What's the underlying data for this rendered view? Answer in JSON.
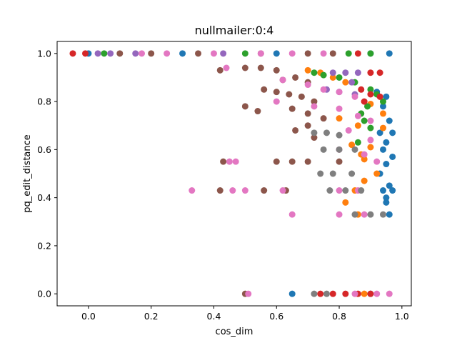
{
  "chart_data": {
    "type": "scatter",
    "title": "nullmailer:0:4",
    "xlabel": "cos_dim",
    "ylabel": "pq_edit_distance",
    "xlim": [
      -0.1,
      1.03
    ],
    "ylim": [
      -0.05,
      1.05
    ],
    "xticks": [
      0.0,
      0.2,
      0.4,
      0.6,
      0.8,
      1.0
    ],
    "xtick_labels": [
      "0.0",
      "0.2",
      "0.4",
      "0.6",
      "0.8",
      "1.0"
    ],
    "yticks": [
      0.0,
      0.2,
      0.4,
      0.6,
      0.8,
      1.0
    ],
    "ytick_labels": [
      "0.0",
      "0.2",
      "0.4",
      "0.6",
      "0.8",
      "1.0"
    ],
    "grid": false,
    "legend": "none",
    "series": [
      {
        "color": "#1f77b4",
        "points": [
          [
            0.0,
            1.0
          ],
          [
            0.3,
            1.0
          ],
          [
            0.6,
            1.0
          ],
          [
            0.9,
            1.0
          ],
          [
            0.96,
            1.0
          ],
          [
            0.92,
            0.84
          ],
          [
            0.95,
            0.82
          ],
          [
            0.94,
            0.78
          ],
          [
            0.96,
            0.72
          ],
          [
            0.93,
            0.67
          ],
          [
            0.97,
            0.67
          ],
          [
            0.95,
            0.63
          ],
          [
            0.94,
            0.6
          ],
          [
            0.97,
            0.57
          ],
          [
            0.95,
            0.54
          ],
          [
            0.93,
            0.5
          ],
          [
            0.96,
            0.45
          ],
          [
            0.94,
            0.43
          ],
          [
            0.97,
            0.43
          ],
          [
            0.95,
            0.4
          ],
          [
            0.95,
            0.38
          ],
          [
            0.96,
            0.33
          ],
          [
            0.65,
            0.0
          ],
          [
            0.9,
            0.0
          ]
        ]
      },
      {
        "color": "#ff7f0e",
        "points": [
          [
            0.7,
            0.93
          ],
          [
            0.74,
            0.92
          ],
          [
            0.78,
            0.9
          ],
          [
            0.82,
            0.88
          ],
          [
            0.9,
            0.79
          ],
          [
            0.94,
            0.75
          ],
          [
            0.8,
            0.73
          ],
          [
            0.86,
            0.7
          ],
          [
            0.94,
            0.69
          ],
          [
            0.84,
            0.62
          ],
          [
            0.9,
            0.61
          ],
          [
            0.87,
            0.58
          ],
          [
            0.88,
            0.56
          ],
          [
            0.92,
            0.5
          ],
          [
            0.88,
            0.47
          ],
          [
            0.85,
            0.43
          ],
          [
            0.82,
            0.38
          ],
          [
            0.86,
            0.33
          ],
          [
            0.88,
            0.0
          ]
        ]
      },
      {
        "color": "#2ca02c",
        "points": [
          [
            0.05,
            1.0
          ],
          [
            0.5,
            1.0
          ],
          [
            0.83,
            1.0
          ],
          [
            0.9,
            1.0
          ],
          [
            0.72,
            0.92
          ],
          [
            0.75,
            0.91
          ],
          [
            0.8,
            0.9
          ],
          [
            0.85,
            0.88
          ],
          [
            0.9,
            0.85
          ],
          [
            0.92,
            0.83
          ],
          [
            0.94,
            0.8
          ],
          [
            0.89,
            0.78
          ],
          [
            0.87,
            0.75
          ],
          [
            0.88,
            0.72
          ],
          [
            0.9,
            0.69
          ],
          [
            0.86,
            0.63
          ]
        ]
      },
      {
        "color": "#d62728",
        "points": [
          [
            -0.05,
            1.0
          ],
          [
            -0.01,
            1.0
          ],
          [
            0.86,
            1.0
          ],
          [
            0.9,
            0.92
          ],
          [
            0.93,
            0.92
          ],
          [
            0.87,
            0.85
          ],
          [
            0.9,
            0.83
          ],
          [
            0.93,
            0.82
          ],
          [
            0.88,
            0.8
          ],
          [
            0.74,
            0.0
          ],
          [
            0.78,
            0.0
          ],
          [
            0.82,
            0.0
          ],
          [
            0.86,
            0.0
          ],
          [
            0.9,
            0.0
          ]
        ]
      },
      {
        "color": "#9467bd",
        "points": [
          [
            0.03,
            1.0
          ],
          [
            0.07,
            1.0
          ],
          [
            0.15,
            1.0
          ],
          [
            0.43,
            1.0
          ],
          [
            0.78,
            0.92
          ],
          [
            0.82,
            0.92
          ],
          [
            0.86,
            0.92
          ],
          [
            0.84,
            0.88
          ],
          [
            0.8,
            0.84
          ],
          [
            0.85,
            0.83
          ],
          [
            0.76,
            0.85
          ]
        ]
      },
      {
        "color": "#8c564b",
        "points": [
          [
            0.1,
            1.0
          ],
          [
            0.2,
            1.0
          ],
          [
            0.35,
            1.0
          ],
          [
            0.55,
            1.0
          ],
          [
            0.7,
            1.0
          ],
          [
            0.78,
            1.0
          ],
          [
            0.42,
            0.93
          ],
          [
            0.5,
            0.94
          ],
          [
            0.55,
            0.94
          ],
          [
            0.6,
            0.93
          ],
          [
            0.62,
            0.89
          ],
          [
            0.66,
            0.9
          ],
          [
            0.7,
            0.88
          ],
          [
            0.56,
            0.85
          ],
          [
            0.6,
            0.84
          ],
          [
            0.64,
            0.83
          ],
          [
            0.68,
            0.82
          ],
          [
            0.72,
            0.8
          ],
          [
            0.5,
            0.78
          ],
          [
            0.54,
            0.76
          ],
          [
            0.65,
            0.77
          ],
          [
            0.7,
            0.75
          ],
          [
            0.75,
            0.73
          ],
          [
            0.7,
            0.7
          ],
          [
            0.66,
            0.68
          ],
          [
            0.72,
            0.65
          ],
          [
            0.43,
            0.55
          ],
          [
            0.6,
            0.55
          ],
          [
            0.65,
            0.55
          ],
          [
            0.7,
            0.55
          ],
          [
            0.8,
            0.55
          ],
          [
            0.42,
            0.43
          ],
          [
            0.56,
            0.43
          ],
          [
            0.63,
            0.43
          ],
          [
            0.5,
            0.0
          ]
        ]
      },
      {
        "color": "#e377c2",
        "points": [
          [
            0.17,
            1.0
          ],
          [
            0.25,
            1.0
          ],
          [
            0.4,
            1.0
          ],
          [
            0.55,
            1.0
          ],
          [
            0.65,
            1.0
          ],
          [
            0.75,
            1.0
          ],
          [
            0.44,
            0.94
          ],
          [
            0.62,
            0.89
          ],
          [
            0.7,
            0.87
          ],
          [
            0.75,
            0.85
          ],
          [
            0.8,
            0.84
          ],
          [
            0.85,
            0.82
          ],
          [
            0.6,
            0.8
          ],
          [
            0.72,
            0.78
          ],
          [
            0.8,
            0.77
          ],
          [
            0.86,
            0.74
          ],
          [
            0.9,
            0.72
          ],
          [
            0.83,
            0.68
          ],
          [
            0.9,
            0.64
          ],
          [
            0.8,
            0.6
          ],
          [
            0.88,
            0.58
          ],
          [
            0.45,
            0.55
          ],
          [
            0.47,
            0.55
          ],
          [
            0.92,
            0.55
          ],
          [
            0.33,
            0.43
          ],
          [
            0.46,
            0.43
          ],
          [
            0.5,
            0.43
          ],
          [
            0.62,
            0.43
          ],
          [
            0.8,
            0.43
          ],
          [
            0.86,
            0.43
          ],
          [
            0.65,
            0.33
          ],
          [
            0.8,
            0.33
          ],
          [
            0.88,
            0.33
          ],
          [
            0.51,
            0.0
          ],
          [
            0.85,
            0.0
          ],
          [
            0.92,
            0.0
          ],
          [
            0.96,
            0.0
          ]
        ]
      },
      {
        "color": "#7f7f7f",
        "points": [
          [
            0.72,
            0.67
          ],
          [
            0.76,
            0.67
          ],
          [
            0.8,
            0.66
          ],
          [
            0.75,
            0.6
          ],
          [
            0.8,
            0.6
          ],
          [
            0.85,
            0.6
          ],
          [
            0.74,
            0.5
          ],
          [
            0.78,
            0.5
          ],
          [
            0.84,
            0.5
          ],
          [
            0.77,
            0.43
          ],
          [
            0.82,
            0.43
          ],
          [
            0.87,
            0.43
          ],
          [
            0.85,
            0.33
          ],
          [
            0.9,
            0.33
          ],
          [
            0.94,
            0.33
          ],
          [
            0.72,
            0.0
          ],
          [
            0.76,
            0.0
          ]
        ]
      }
    ]
  }
}
